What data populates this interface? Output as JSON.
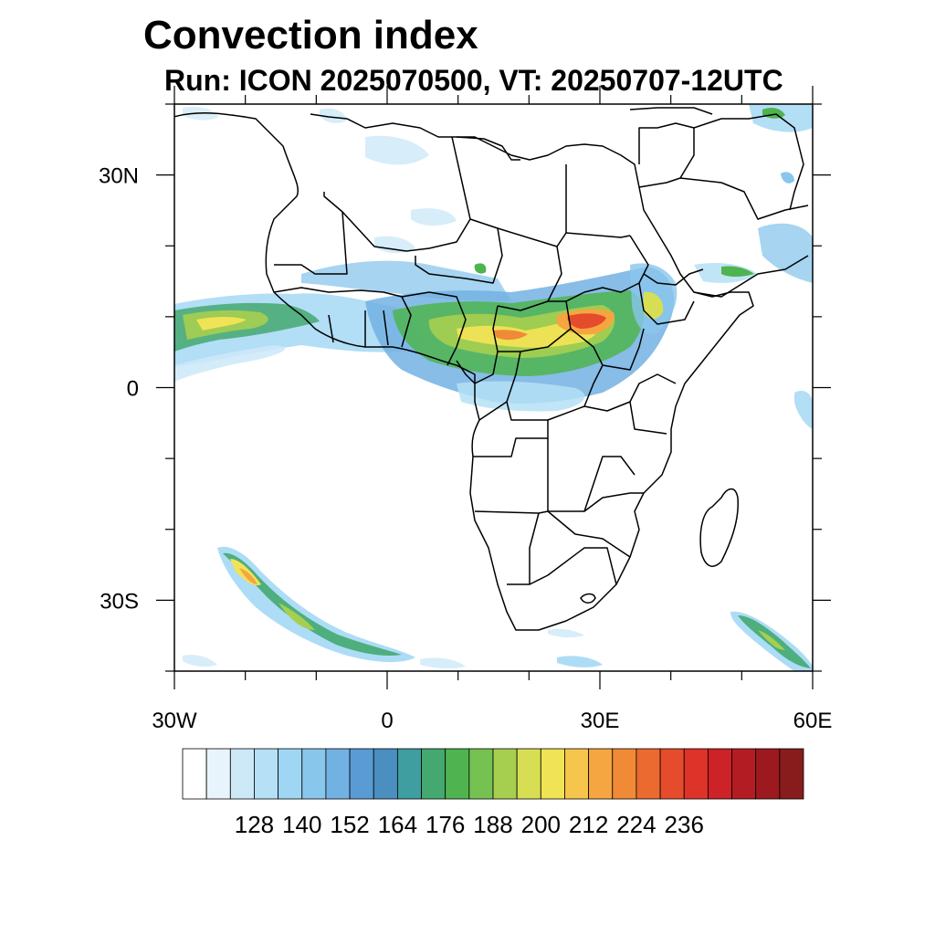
{
  "title": "Convection index",
  "subtitle": "Run: ICON 2025070500,  VT: 20250707-12UTC",
  "map": {
    "lon_range": [
      -30,
      60
    ],
    "lat_range": [
      -40,
      40
    ],
    "x_ticks": [
      {
        "lon": -30,
        "label": "30W"
      },
      {
        "lon": 0,
        "label": "0"
      },
      {
        "lon": 30,
        "label": "30E"
      },
      {
        "lon": 60,
        "label": "60E"
      }
    ],
    "y_ticks": [
      {
        "lat": 30,
        "label": "30N"
      },
      {
        "lat": 0,
        "label": "0"
      },
      {
        "lat": -30,
        "label": "30S"
      }
    ]
  },
  "colorbar": {
    "colors": [
      "#ffffff",
      "#e8f4fc",
      "#cde9f8",
      "#b5e0f6",
      "#9fd6f4",
      "#88c6ec",
      "#72b2e3",
      "#5b9bd5",
      "#4a8fc0",
      "#3f9e9f",
      "#44a870",
      "#4fb44f",
      "#75c151",
      "#a6cf4f",
      "#d7de53",
      "#f1e356",
      "#f6c54c",
      "#f5a640",
      "#f08a37",
      "#eb6a2f",
      "#e54c2b",
      "#de3329",
      "#cc2228",
      "#b41c24",
      "#9c1a1f",
      "#881c1c"
    ],
    "labels": [
      "128",
      "140",
      "152",
      "164",
      "176",
      "188",
      "200",
      "212",
      "224",
      "236"
    ]
  }
}
